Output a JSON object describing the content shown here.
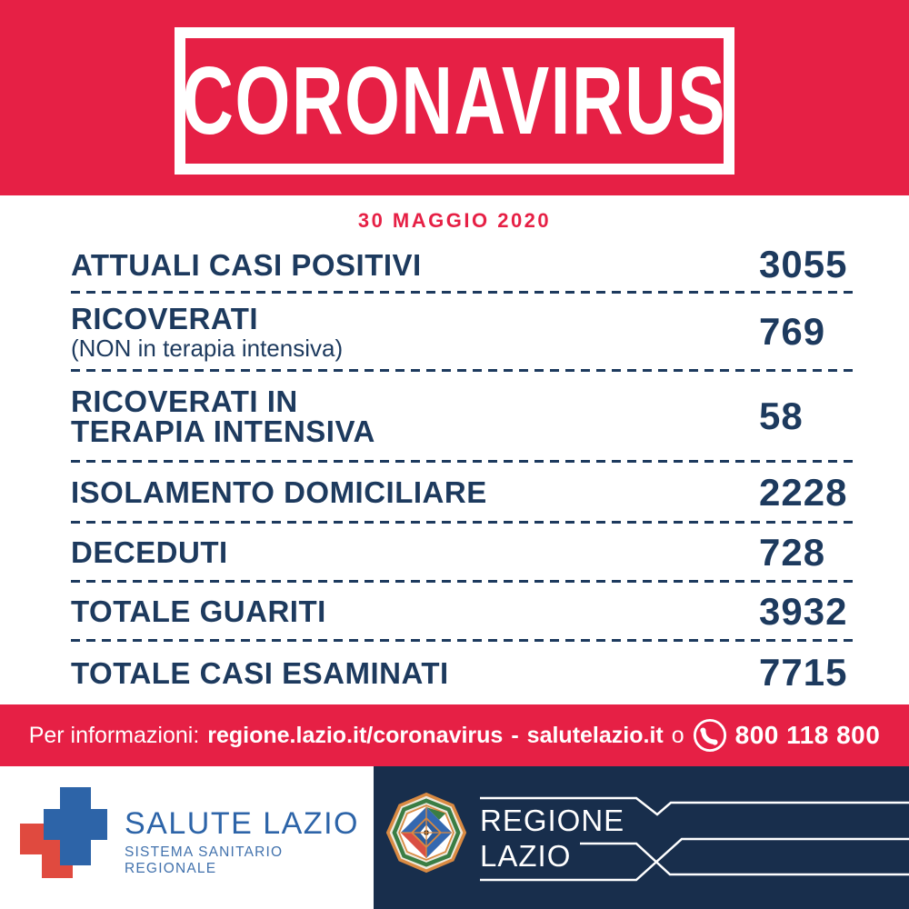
{
  "colors": {
    "red": "#e62045",
    "navy_text": "#1d3a5e",
    "panel_navy": "#182e4c",
    "salute_blue": "#2d64a8",
    "salute_sub_blue": "#4272ad",
    "cross_red": "#e04a3f"
  },
  "header": {
    "title": "CORONAVIRUS"
  },
  "report": {
    "date": "30 MAGGIO 2020"
  },
  "stats": [
    {
      "lines": [
        "ATTUALI CASI POSITIVI"
      ],
      "sublabel": "",
      "value": "3055"
    },
    {
      "lines": [
        "RICOVERATI"
      ],
      "sublabel": "(NON in terapia intensiva)",
      "value": "769"
    },
    {
      "lines": [
        "RICOVERATI IN",
        "TERAPIA INTENSIVA"
      ],
      "sublabel": "",
      "value": "58"
    },
    {
      "lines": [
        "ISOLAMENTO DOMICILIARE"
      ],
      "sublabel": "",
      "value": "2228"
    },
    {
      "lines": [
        "DECEDUTI"
      ],
      "sublabel": "",
      "value": "728"
    },
    {
      "lines": [
        "TOTALE GUARITI"
      ],
      "sublabel": "",
      "value": "3932"
    },
    {
      "lines": [
        "TOTALE CASI ESAMINATI"
      ],
      "sublabel": "",
      "value": "7715"
    }
  ],
  "info_bar": {
    "prefix": "Per informazioni:",
    "url_primary": "regione.lazio.it/coronavirus",
    "separator": "-",
    "url_secondary": "salutelazio.it",
    "conjunction": "o",
    "phone_icon": "phone-handset-icon",
    "phone_number": "800 118 800"
  },
  "footer": {
    "salute_lazio": {
      "logo_icon": "red-blue-double-cross-icon",
      "title": "SALUTE LAZIO",
      "subtitle": "SISTEMA SANITARIO REGIONALE"
    },
    "regione_lazio": {
      "emblem_icon": "lazio-coat-of-arms-icon",
      "name_line1": "REGIONE",
      "name_line2": "LAZIO"
    }
  }
}
